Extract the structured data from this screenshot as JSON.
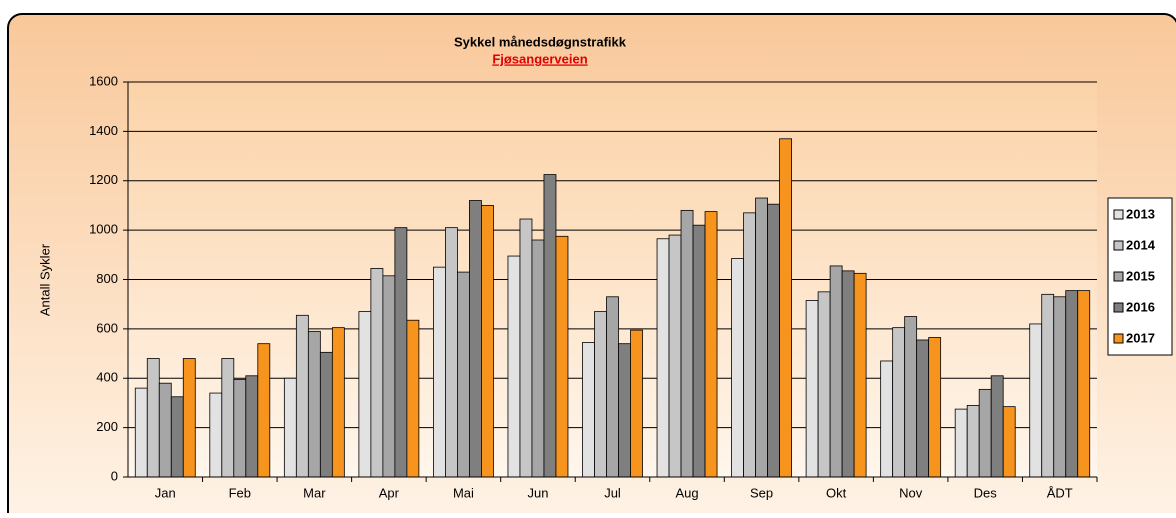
{
  "chart_data": {
    "type": "bar",
    "title": "Sykkel månedsdøgnstrafikk",
    "subtitle": "Fjøsangerveien",
    "y_label": "Antall Sykler",
    "categories": [
      "Jan",
      "Feb",
      "Mar",
      "Apr",
      "Mai",
      "Jun",
      "Jul",
      "Aug",
      "Sep",
      "Okt",
      "Nov",
      "Des",
      "ÅDT"
    ],
    "series": [
      {
        "name": "2013",
        "color": "#e2e2e2",
        "values": [
          360,
          340,
          400,
          670,
          850,
          895,
          545,
          965,
          885,
          715,
          470,
          275,
          620
        ]
      },
      {
        "name": "2014",
        "color": "#c6c6c6",
        "values": [
          480,
          480,
          655,
          845,
          1010,
          1045,
          670,
          980,
          1070,
          750,
          605,
          290,
          740
        ]
      },
      {
        "name": "2015",
        "color": "#a6a6a6",
        "values": [
          380,
          395,
          590,
          815,
          830,
          960,
          730,
          1080,
          1130,
          855,
          650,
          355,
          730
        ]
      },
      {
        "name": "2016",
        "color": "#7f7f7f",
        "values": [
          325,
          410,
          505,
          1010,
          1120,
          1225,
          540,
          1020,
          1105,
          835,
          555,
          410,
          755
        ]
      },
      {
        "name": "2017",
        "color": "#f7941d",
        "values": [
          480,
          540,
          605,
          635,
          1100,
          975,
          595,
          1075,
          1370,
          825,
          565,
          285,
          755
        ]
      }
    ],
    "ylim": [
      0,
      1600
    ],
    "yticks": [
      0,
      200,
      400,
      600,
      800,
      1000,
      1200,
      1400,
      1600
    ],
    "grid": true,
    "legend": "right"
  }
}
